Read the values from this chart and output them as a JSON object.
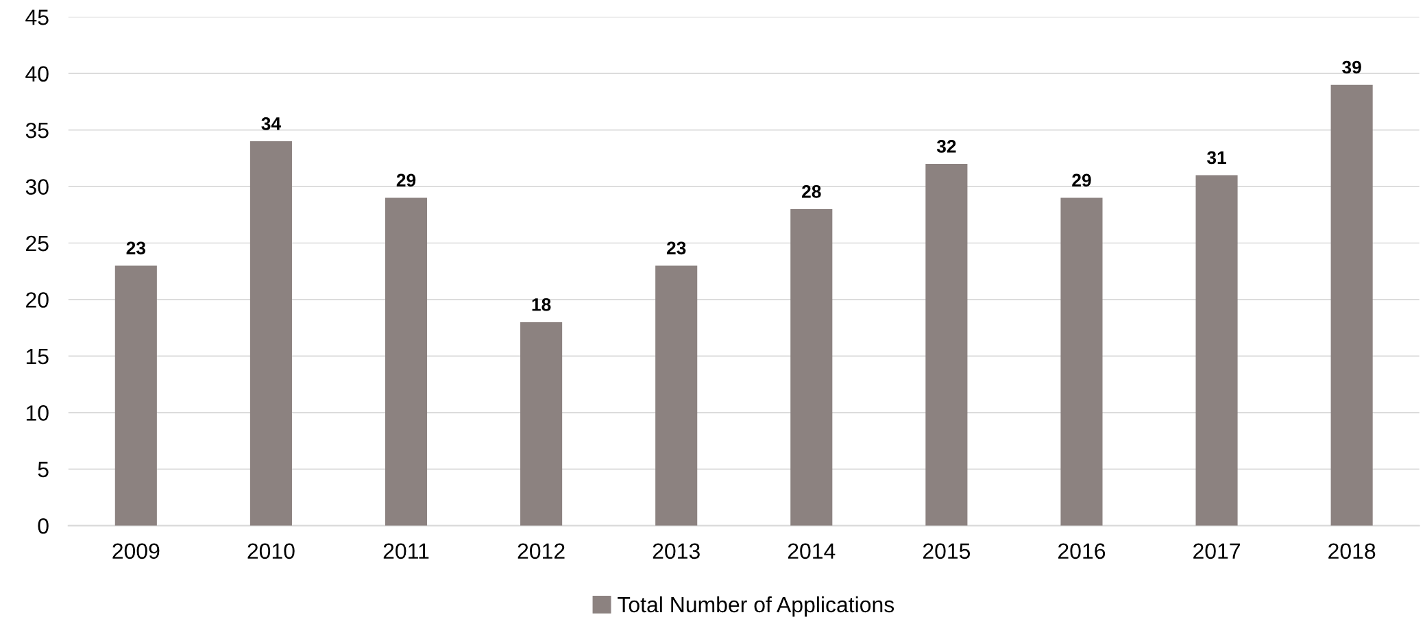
{
  "chart_data": {
    "type": "bar",
    "categories": [
      "2009",
      "2010",
      "2011",
      "2012",
      "2013",
      "2014",
      "2015",
      "2016",
      "2017",
      "2018"
    ],
    "series": [
      {
        "name": "Total Number of Applications",
        "color": "#8c8280",
        "values": [
          23,
          34,
          29,
          18,
          23,
          28,
          32,
          29,
          31,
          39
        ]
      }
    ],
    "ylim": [
      0,
      45
    ],
    "yticks": [
      0,
      5,
      10,
      15,
      20,
      25,
      30,
      35,
      40,
      45
    ],
    "grid": "y",
    "legend": "bottom",
    "data_labels": true
  }
}
